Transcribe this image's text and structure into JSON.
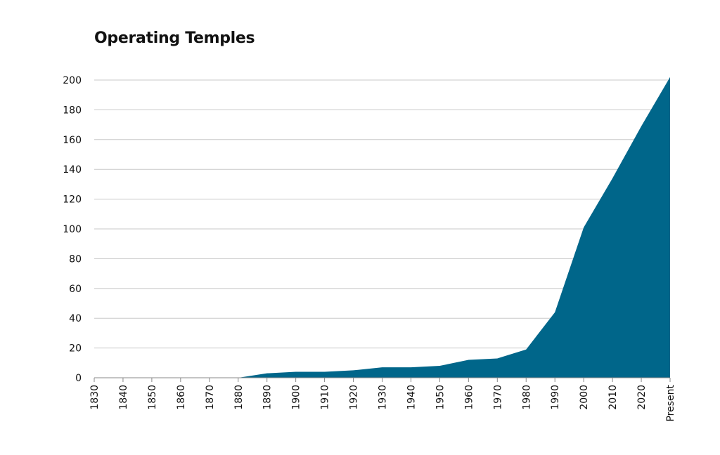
{
  "chart_data": {
    "type": "area",
    "title": "Operating Temples",
    "xlabel": "",
    "ylabel": "",
    "x": [
      "1830",
      "1840",
      "1850",
      "1860",
      "1870",
      "1880",
      "1890",
      "1900",
      "1910",
      "1920",
      "1930",
      "1940",
      "1950",
      "1960",
      "1970",
      "1980",
      "1990",
      "2000",
      "2010",
      "2020",
      "Present"
    ],
    "series": [
      {
        "values": [
          0,
          0,
          0,
          0,
          0,
          0,
          3,
          4,
          4,
          5,
          7,
          7,
          8,
          12,
          13,
          19,
          44,
          101,
          134,
          169,
          202
        ]
      }
    ],
    "ylim": [
      0,
      200
    ],
    "yticks": [
      0,
      20,
      40,
      60,
      80,
      100,
      120,
      140,
      160,
      180,
      200
    ],
    "grid": true,
    "legend": "none",
    "colors": {
      "area": "#00668a",
      "grid": "#c8c8c8",
      "axis": "#888888",
      "text": "#111111"
    }
  }
}
